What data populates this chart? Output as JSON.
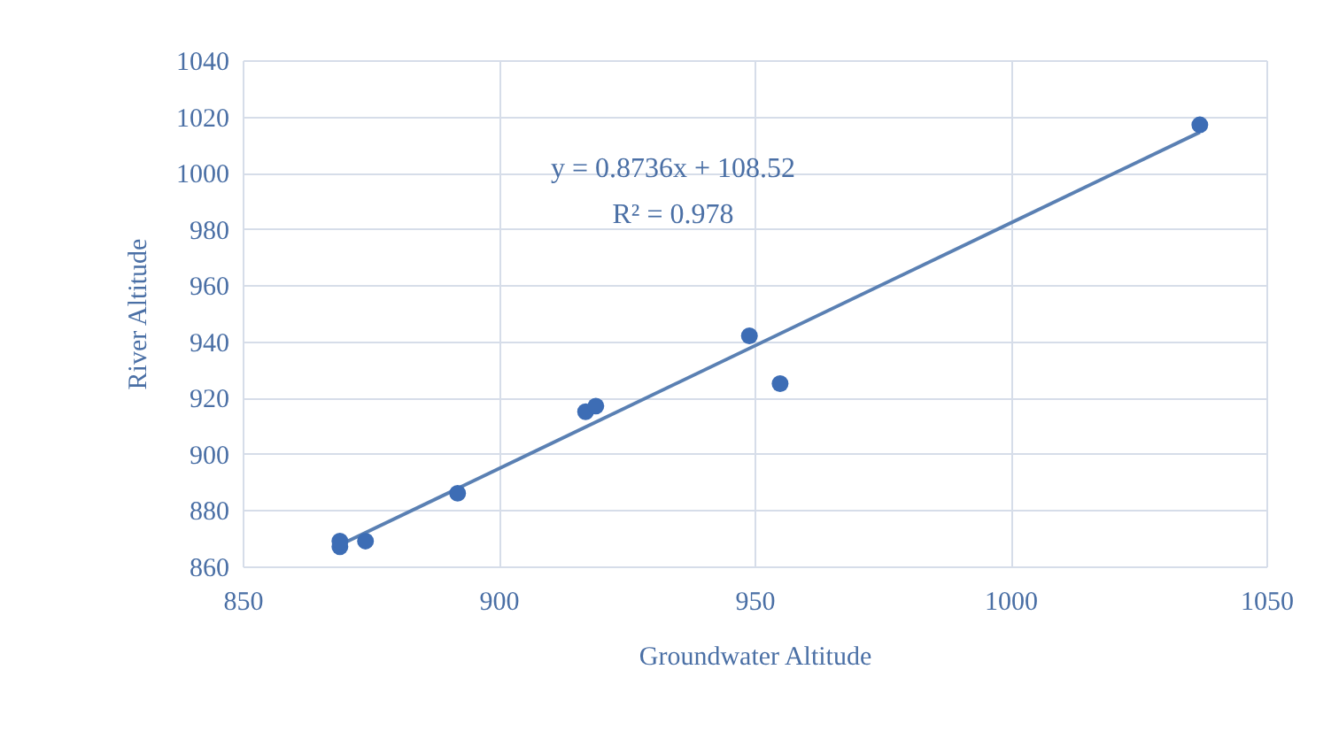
{
  "chart_data": {
    "type": "scatter",
    "xlabel": "Groundwater Altitude",
    "ylabel": "River Altitude",
    "series": [
      {
        "type": "scatter",
        "color": "#3d6db5",
        "marker": "circle",
        "x": [
          869,
          869,
          874,
          892,
          917,
          919,
          949,
          955,
          1037
        ],
        "values": [
          867,
          869,
          869,
          886,
          915,
          917,
          942,
          925,
          1017
        ]
      },
      {
        "type": "line",
        "color": "#5a80b3",
        "x": [
          870,
          1037
        ],
        "values": [
          868.5,
          1014.4
        ]
      }
    ],
    "annotations": [
      "y = 0.8736x + 108.52",
      "R² = 0.978"
    ],
    "xlim": [
      850,
      1050
    ],
    "xticks": [
      850,
      900,
      950,
      1000,
      1050
    ],
    "ylim": [
      860,
      1040
    ],
    "yticks": [
      860,
      880,
      900,
      920,
      940,
      960,
      980,
      1000,
      1020,
      1040
    ],
    "grid": true,
    "line_style": "solid"
  }
}
